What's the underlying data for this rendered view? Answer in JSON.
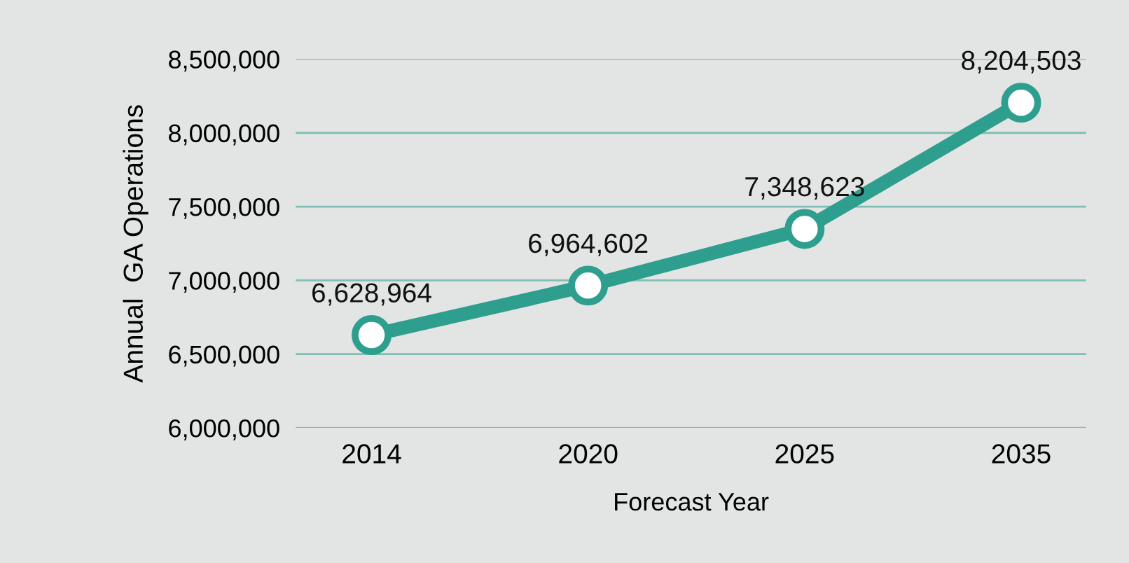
{
  "chart_data": {
    "type": "line",
    "xlabel": "Forecast Year",
    "ylabel": "Annual  GA Operations",
    "categories": [
      "2014",
      "2020",
      "2025",
      "2035"
    ],
    "series": [
      {
        "color": "#2e9e8e",
        "values": [
          6628964,
          6964602,
          7348623,
          8204503
        ],
        "value_labels": [
          "6,628,964",
          "6,964,602",
          "7,348,623",
          "8,204,503"
        ]
      }
    ],
    "ylim": [
      6000000,
      8500000
    ],
    "yticks": [
      {
        "value": 6000000,
        "label": "6,000,000"
      },
      {
        "value": 6500000,
        "label": "6,500,000"
      },
      {
        "value": 7000000,
        "label": "7,000,000"
      },
      {
        "value": 7500000,
        "label": "7,500,000"
      },
      {
        "value": 8000000,
        "label": "8,000,000"
      },
      {
        "value": 8500000,
        "label": "8,500,000"
      }
    ],
    "grid": "y",
    "marker": "circle",
    "line_style": "solid"
  }
}
